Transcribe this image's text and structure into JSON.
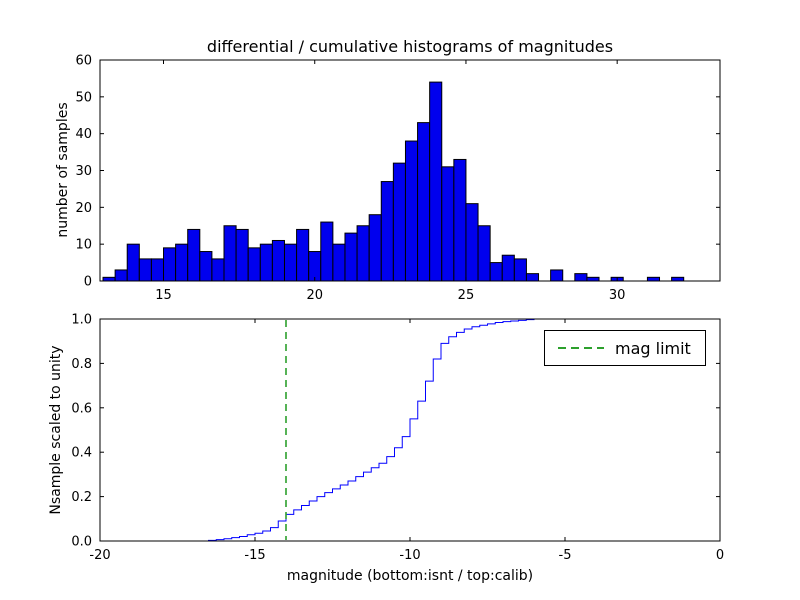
{
  "chart_data": [
    {
      "type": "bar",
      "subtype": "histogram",
      "title": "differential / cumulative histograms of magnitudes",
      "ylabel": "number of samples",
      "xlim": [
        12.9,
        33.4
      ],
      "ylim": [
        0,
        60
      ],
      "xticks": [
        15,
        20,
        25,
        30
      ],
      "xticklabels": [
        "15",
        "20",
        "25",
        "30"
      ],
      "yticks": [
        0,
        10,
        20,
        30,
        40,
        50,
        60
      ],
      "yticklabels": [
        "0",
        "10",
        "20",
        "30",
        "40",
        "50",
        "60"
      ],
      "grid": false,
      "bin_start": 13.0,
      "bin_width": 0.4,
      "counts": [
        1,
        3,
        10,
        6,
        6,
        9,
        10,
        14,
        8,
        6,
        15,
        14,
        9,
        10,
        11,
        10,
        14,
        8,
        16,
        10,
        13,
        15,
        18,
        27,
        32,
        38,
        43,
        54,
        31,
        33,
        21,
        15,
        5,
        7,
        6,
        2,
        0,
        3,
        0,
        2,
        1,
        0,
        1,
        0,
        0,
        1,
        0,
        1
      ],
      "bar_fill": "#0000ee",
      "bar_edge": "#000000"
    },
    {
      "type": "line",
      "subtype": "cumulative-step",
      "ylabel": "Nsample scaled to unity",
      "xlabel": "magnitude (bottom:isnt / top:calib)",
      "xlim": [
        -20,
        0
      ],
      "ylim": [
        0.0,
        1.0
      ],
      "xticks": [
        -20,
        -15,
        -10,
        -5,
        0
      ],
      "xticklabels": [
        "-20",
        "-15",
        "-10",
        "-5",
        "0"
      ],
      "yticks": [
        0.0,
        0.2,
        0.4,
        0.6,
        0.8,
        1.0
      ],
      "yticklabels": [
        "0.0",
        "0.2",
        "0.4",
        "0.6",
        "0.8",
        "1.0"
      ],
      "grid": false,
      "line_color": "#0000ff",
      "steps": [
        [
          -20.0,
          0.0
        ],
        [
          -16.75,
          0.0
        ],
        [
          -16.5,
          0.003
        ],
        [
          -16.25,
          0.006
        ],
        [
          -16.0,
          0.01
        ],
        [
          -15.75,
          0.015
        ],
        [
          -15.5,
          0.02
        ],
        [
          -15.25,
          0.028
        ],
        [
          -15.0,
          0.035
        ],
        [
          -14.75,
          0.045
        ],
        [
          -14.5,
          0.06
        ],
        [
          -14.25,
          0.09
        ],
        [
          -14.0,
          0.12
        ],
        [
          -13.75,
          0.14
        ],
        [
          -13.5,
          0.16
        ],
        [
          -13.25,
          0.18
        ],
        [
          -13.0,
          0.2
        ],
        [
          -12.75,
          0.218
        ],
        [
          -12.5,
          0.235
        ],
        [
          -12.25,
          0.252
        ],
        [
          -12.0,
          0.27
        ],
        [
          -11.75,
          0.29
        ],
        [
          -11.5,
          0.31
        ],
        [
          -11.25,
          0.33
        ],
        [
          -11.0,
          0.35
        ],
        [
          -10.75,
          0.38
        ],
        [
          -10.5,
          0.42
        ],
        [
          -10.25,
          0.47
        ],
        [
          -10.0,
          0.55
        ],
        [
          -9.75,
          0.63
        ],
        [
          -9.5,
          0.72
        ],
        [
          -9.25,
          0.82
        ],
        [
          -9.0,
          0.89
        ],
        [
          -8.75,
          0.92
        ],
        [
          -8.5,
          0.94
        ],
        [
          -8.25,
          0.955
        ],
        [
          -8.0,
          0.965
        ],
        [
          -7.75,
          0.972
        ],
        [
          -7.5,
          0.978
        ],
        [
          -7.25,
          0.984
        ],
        [
          -7.0,
          0.988
        ],
        [
          -6.75,
          0.991
        ],
        [
          -6.5,
          0.994
        ],
        [
          -6.25,
          0.997
        ],
        [
          -6.0,
          1.0
        ],
        [
          0.0,
          1.0
        ]
      ],
      "mag_limit": {
        "x": -14,
        "color": "#2ca02c",
        "style": "dashed",
        "label": "mag limit"
      },
      "legend": {
        "position": "upper right",
        "label": "mag limit"
      }
    }
  ]
}
